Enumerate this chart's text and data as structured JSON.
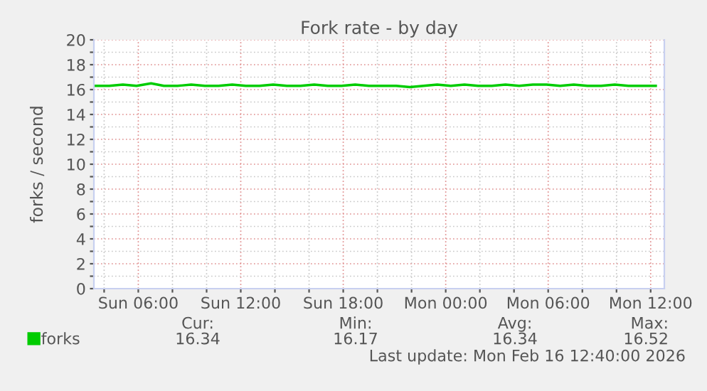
{
  "chart_data": {
    "type": "line",
    "title": "Fork rate - by day",
    "ylabel": "forks / second",
    "x": [
      "2026-02-15T03:30",
      "2026-02-15T04:18",
      "2026-02-15T05:06",
      "2026-02-15T05:54",
      "2026-02-15T06:45",
      "2026-02-15T07:30",
      "2026-02-15T08:18",
      "2026-02-15T09:06",
      "2026-02-15T09:54",
      "2026-02-15T10:42",
      "2026-02-15T11:30",
      "2026-02-15T12:18",
      "2026-02-15T13:06",
      "2026-02-15T13:54",
      "2026-02-15T14:42",
      "2026-02-15T15:30",
      "2026-02-15T16:18",
      "2026-02-15T17:06",
      "2026-02-15T17:54",
      "2026-02-15T18:42",
      "2026-02-15T19:30",
      "2026-02-15T20:18",
      "2026-02-15T21:06",
      "2026-02-15T21:54",
      "2026-02-15T22:42",
      "2026-02-15T23:30",
      "2026-02-16T00:18",
      "2026-02-16T01:06",
      "2026-02-16T01:54",
      "2026-02-16T02:42",
      "2026-02-16T03:30",
      "2026-02-16T04:18",
      "2026-02-16T05:06",
      "2026-02-16T05:54",
      "2026-02-16T06:42",
      "2026-02-16T07:30",
      "2026-02-16T08:18",
      "2026-02-16T09:06",
      "2026-02-16T09:54",
      "2026-02-16T10:42",
      "2026-02-16T11:30",
      "2026-02-16T12:18"
    ],
    "series": [
      {
        "name": "forks",
        "color": "#00cc00",
        "values": [
          16.3,
          16.3,
          16.4,
          16.3,
          16.5,
          16.3,
          16.3,
          16.4,
          16.3,
          16.3,
          16.4,
          16.3,
          16.3,
          16.4,
          16.3,
          16.3,
          16.4,
          16.3,
          16.3,
          16.4,
          16.3,
          16.3,
          16.3,
          16.2,
          16.3,
          16.4,
          16.3,
          16.4,
          16.3,
          16.3,
          16.4,
          16.3,
          16.4,
          16.4,
          16.3,
          16.4,
          16.3,
          16.3,
          16.4,
          16.3,
          16.3,
          16.3
        ]
      }
    ],
    "xlim": [
      "2026-02-15T03:24",
      "2026-02-16T12:48"
    ],
    "xticks": [
      {
        "value": "2026-02-15T04:00",
        "label": null
      },
      {
        "value": "2026-02-15T06:00",
        "label": "Sun 06:00"
      },
      {
        "value": "2026-02-15T08:00",
        "label": null
      },
      {
        "value": "2026-02-15T10:00",
        "label": null
      },
      {
        "value": "2026-02-15T12:00",
        "label": "Sun 12:00"
      },
      {
        "value": "2026-02-15T14:00",
        "label": null
      },
      {
        "value": "2026-02-15T16:00",
        "label": null
      },
      {
        "value": "2026-02-15T18:00",
        "label": "Sun 18:00"
      },
      {
        "value": "2026-02-15T20:00",
        "label": null
      },
      {
        "value": "2026-02-15T22:00",
        "label": null
      },
      {
        "value": "2026-02-16T00:00",
        "label": "Mon 00:00"
      },
      {
        "value": "2026-02-16T02:00",
        "label": null
      },
      {
        "value": "2026-02-16T04:00",
        "label": null
      },
      {
        "value": "2026-02-16T06:00",
        "label": "Mon 06:00"
      },
      {
        "value": "2026-02-16T08:00",
        "label": null
      },
      {
        "value": "2026-02-16T10:00",
        "label": null
      },
      {
        "value": "2026-02-16T12:00",
        "label": "Mon 12:00"
      }
    ],
    "ylim": [
      0,
      20
    ],
    "yticks": [
      0,
      {
        "value": 1,
        "label": null
      },
      2,
      {
        "value": 3,
        "label": null
      },
      4,
      {
        "value": 5,
        "label": null
      },
      6,
      {
        "value": 7,
        "label": null
      },
      8,
      {
        "value": 9,
        "label": null
      },
      10,
      {
        "value": 11,
        "label": null
      },
      12,
      {
        "value": 13,
        "label": null
      },
      14,
      {
        "value": 15,
        "label": null
      },
      16,
      {
        "value": 17,
        "label": null
      },
      18,
      {
        "value": 19,
        "label": null
      },
      20
    ],
    "grid": true,
    "legend": "bottom left",
    "line_style": "solid",
    "marker": "none",
    "annotations": [
      "Cur:",
      "16.34",
      "Min:",
      "16.17",
      "Avg:",
      "16.34",
      "Max:",
      "16.52",
      "Last update: Mon Feb 16 12:40:00 2026"
    ]
  }
}
